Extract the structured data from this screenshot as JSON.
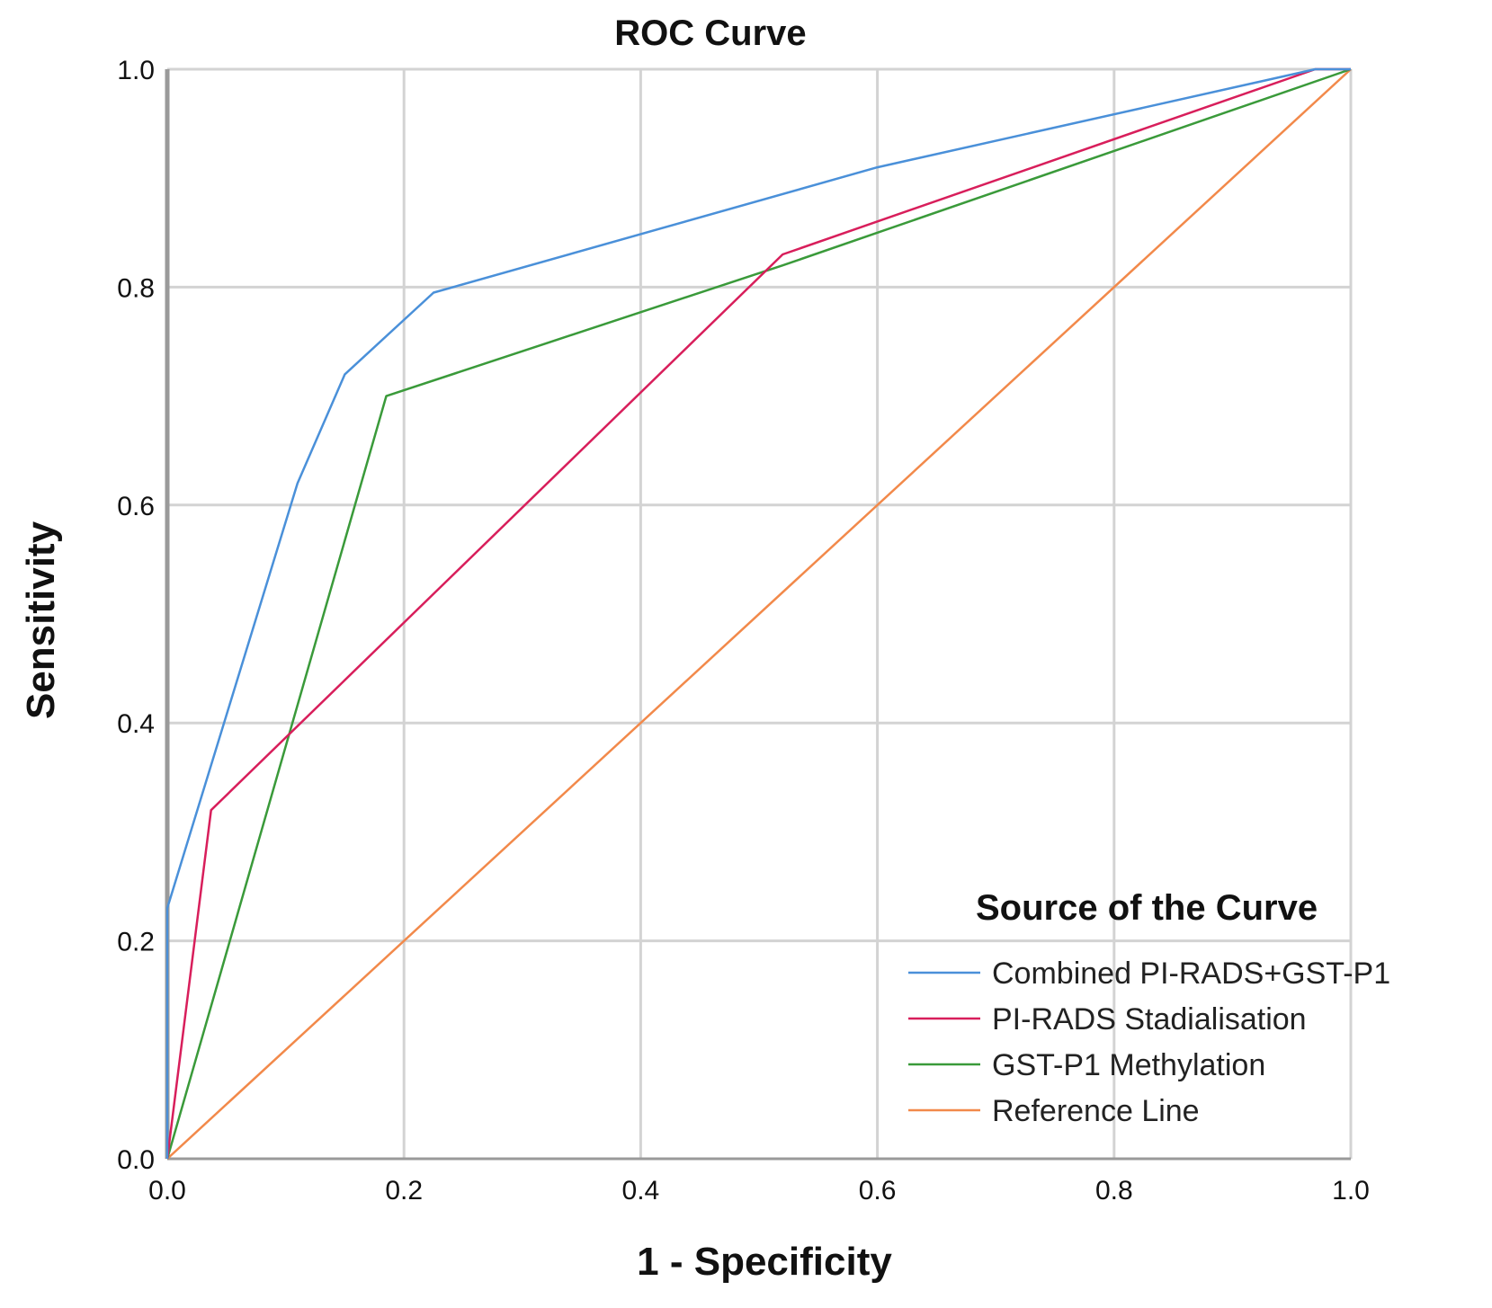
{
  "chart_data": {
    "type": "line",
    "title": "ROC Curve",
    "xlabel": "1 - Specificity",
    "ylabel": "Sensitivity",
    "xlim": [
      0,
      1
    ],
    "ylim": [
      0,
      1
    ],
    "grid": true,
    "x_ticks": [
      {
        "value": 0.0,
        "label": "0.0"
      },
      {
        "value": 0.2,
        "label": "0.2"
      },
      {
        "value": 0.4,
        "label": "0.4"
      },
      {
        "value": 0.6,
        "label": "0.6"
      },
      {
        "value": 0.8,
        "label": "0.8"
      },
      {
        "value": 1.0,
        "label": "1.0"
      }
    ],
    "y_ticks": [
      {
        "value": 0.0,
        "label": "0.0"
      },
      {
        "value": 0.2,
        "label": "0.2"
      },
      {
        "value": 0.4,
        "label": "0.4"
      },
      {
        "value": 0.6,
        "label": "0.6"
      },
      {
        "value": 0.8,
        "label": "0.8"
      },
      {
        "value": 1.0,
        "label": "1.0"
      }
    ],
    "legend": {
      "title": "Source of the Curve",
      "position": "bottom-right"
    },
    "series": [
      {
        "name": "Combined PI-RADS+GST-P1",
        "color": "#4a90d9",
        "x": [
          0.0,
          0.0,
          0.11,
          0.15,
          0.225,
          0.6,
          0.97,
          1.0
        ],
        "y": [
          0.0,
          0.23,
          0.62,
          0.72,
          0.795,
          0.91,
          1.0,
          1.0
        ]
      },
      {
        "name": "PI-RADS Stadialisation",
        "color": "#d81e5b",
        "x": [
          0.0,
          0.037,
          0.52,
          0.97,
          1.0
        ],
        "y": [
          0.0,
          0.32,
          0.83,
          1.0,
          1.0
        ]
      },
      {
        "name": "GST-P1 Methylation",
        "color": "#3a9a3a",
        "x": [
          0.0,
          0.185,
          0.52,
          1.0
        ],
        "y": [
          0.0,
          0.7,
          0.82,
          1.0
        ]
      },
      {
        "name": "Reference Line",
        "color": "#f2894a",
        "x": [
          0.0,
          1.0
        ],
        "y": [
          0.0,
          1.0
        ]
      }
    ]
  }
}
